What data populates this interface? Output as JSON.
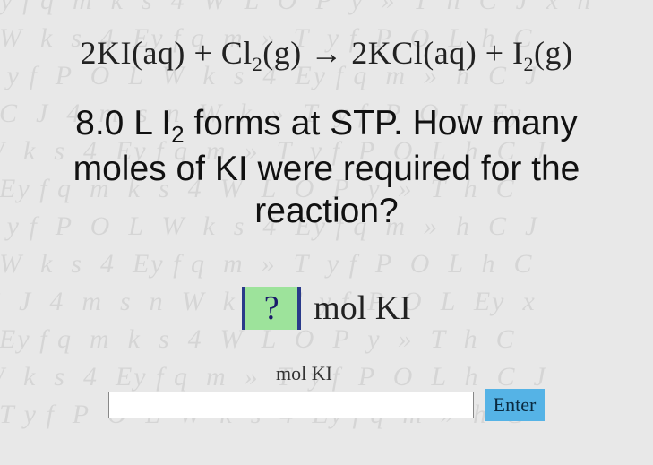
{
  "colors": {
    "background": "#e8e8e8",
    "bg_text": "rgba(0,0,0,0.08)",
    "blank_bg": "#9de39b",
    "blank_border": "#2a3a8a",
    "enter_bg": "#55b3e6",
    "text": "#222222"
  },
  "equation": {
    "lhs1_coef": "2",
    "lhs1": "KI",
    "lhs1_state": "(aq)",
    "plus1": " + ",
    "lhs2": "Cl",
    "lhs2_sub": "2",
    "lhs2_state": "(g)",
    "arrow": " → ",
    "rhs1_coef": "2",
    "rhs1": "KCl",
    "rhs1_state": "(aq)",
    "plus2": " + ",
    "rhs2": "I",
    "rhs2_sub": "2",
    "rhs2_state": "(g)"
  },
  "question": {
    "pre": "8.0 L I",
    "sub": "2",
    "post": " forms at STP. How many moles of KI were required for the reaction?"
  },
  "answer": {
    "blank_symbol": "?",
    "unit": "mol KI"
  },
  "input": {
    "label": "mol KI",
    "value": "",
    "enter_label": "Enter"
  },
  "bg_pattern": "Ey f q  m  k  s  4  W  L  O  P  y  »  T  h  C  J  x  n\n  W  k  s  4  Ey f q  m  »  T  y f  P  O  L  h  C\nT y f  P  O  L  W  k  s  4  Ey f q  m  »  h  C  J\n  C  J  4  m  s  n  W  k  »  T  y f  P  O  L  Ey\nW  k  s  4  Ey f q  m  »  T  y f  P  O  L  h  C  J\n  Ey f q  m  k  s  4  W  L  O  P  y  »  T  h  C\nT y f  P  O  L  W  k  s  4  Ey f q  m  »  h  C  J\n  W  k  s  4  Ey f q  m  »  T  y f  P  O  L  h  C\nC  J  4  m  s  n  W  k  »  T  y f  P  O  L  Ey  x\n  Ey f q  m  k  s  4  W  L  O  P  y  »  T  h  C\nW  k  s  4  Ey f q  m  »  T  y f  P  O  L  h  C  J\n  T y f  P  O  L  W  k  s  4  Ey f q  m  »  h  C"
}
